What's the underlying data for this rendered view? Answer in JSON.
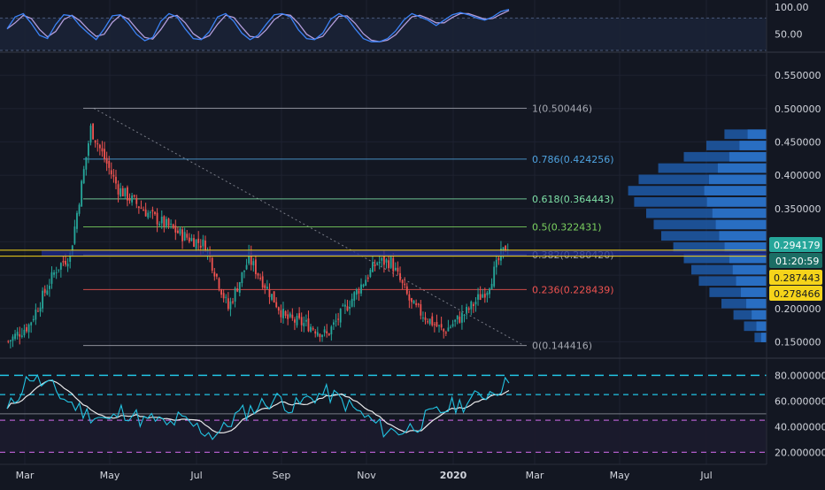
{
  "colors": {
    "background": "#131722",
    "grid": "#1e2230",
    "divider": "#363a45",
    "axis_text": "#d1d4dc",
    "up": "#26a69a",
    "down": "#ef5350",
    "stoch_k": "#3b82f6",
    "stoch_d": "#b39ddb",
    "rsi": "#22c4e3",
    "rsi_ma": "#ffffff",
    "volume_profile": "#1f5ba8",
    "volume_profile_light": "#2f7bd6",
    "last_price_bg": "#26a69a",
    "yellow_level_bg": "#f5d41a"
  },
  "top_panel": {
    "ticks": [
      "100.00",
      "50.00"
    ],
    "tick_values": [
      100,
      50
    ],
    "range": [
      20,
      110
    ],
    "band": [
      20,
      80
    ]
  },
  "rsi_panel": {
    "ticks": [
      "80.000000",
      "60.000000",
      "40.000000",
      "20.000000"
    ],
    "tick_values": [
      80,
      60,
      40,
      20
    ],
    "range": [
      12,
      92
    ],
    "levels": {
      "upper": 80,
      "upper2": 65,
      "lower": 45,
      "bottom": 20,
      "mid": 50
    }
  },
  "main_panel": {
    "ticks": [
      "0.550000",
      "0.500000",
      "0.450000",
      "0.400000",
      "0.350000",
      "0.300000",
      "0.250000",
      "0.200000",
      "0.150000"
    ],
    "tick_values": [
      0.55,
      0.5,
      0.45,
      0.4,
      0.35,
      0.3,
      0.25,
      0.2,
      0.15
    ],
    "range": [
      0.128,
      0.582
    ]
  },
  "x_axis": {
    "labels": [
      "Mar",
      "May",
      "Jul",
      "Sep",
      "Nov",
      "2020",
      "Mar",
      "May",
      "Jul"
    ],
    "bold": [
      false,
      false,
      false,
      false,
      false,
      true,
      false,
      false,
      false
    ]
  },
  "price_labels": {
    "last": "0.294179",
    "countdown": "01:20:59",
    "level_a": "0.287443",
    "level_b": "0.278466"
  },
  "fib_levels": [
    {
      "text": "1(0.500446)",
      "value": 0.500446,
      "color": "#a3a6af"
    },
    {
      "text": "0.786(0.424256)",
      "value": 0.424256,
      "color": "#4fa3e0"
    },
    {
      "text": "0.618(0.364443)",
      "value": 0.364443,
      "color": "#7ee0a6"
    },
    {
      "text": "0.5(0.322431)",
      "value": 0.322431,
      "color": "#7bd15f"
    },
    {
      "text": "0.382(0.280420)",
      "value": 0.28042,
      "color": "#a3a6af"
    },
    {
      "text": "0.236(0.228439)",
      "value": 0.228439,
      "color": "#ef5350"
    },
    {
      "text": "0(0.144416)",
      "value": 0.144416,
      "color": "#a3a6af"
    }
  ],
  "chart_data": {
    "type": "candlestick",
    "note_free": "",
    "candles": {
      "segments": [
        {
          "from": 0.148,
          "to": 0.175,
          "n": 10
        },
        {
          "from": 0.175,
          "to": 0.26,
          "n": 12
        },
        {
          "from": 0.26,
          "to": 0.28,
          "n": 6
        },
        {
          "from": 0.28,
          "to": 0.47,
          "n": 9
        },
        {
          "from": 0.47,
          "to": 0.38,
          "n": 12
        },
        {
          "from": 0.38,
          "to": 0.34,
          "n": 14
        },
        {
          "from": 0.34,
          "to": 0.31,
          "n": 14
        },
        {
          "from": 0.31,
          "to": 0.295,
          "n": 10
        },
        {
          "from": 0.295,
          "to": 0.2,
          "n": 10
        },
        {
          "from": 0.2,
          "to": 0.275,
          "n": 9
        },
        {
          "from": 0.275,
          "to": 0.185,
          "n": 16
        },
        {
          "from": 0.185,
          "to": 0.175,
          "n": 10
        },
        {
          "from": 0.175,
          "to": 0.16,
          "n": 8
        },
        {
          "from": 0.16,
          "to": 0.22,
          "n": 12
        },
        {
          "from": 0.22,
          "to": 0.27,
          "n": 10
        },
        {
          "from": 0.27,
          "to": 0.27,
          "n": 6
        },
        {
          "from": 0.27,
          "to": 0.205,
          "n": 9
        },
        {
          "from": 0.205,
          "to": 0.165,
          "n": 14
        },
        {
          "from": 0.165,
          "to": 0.195,
          "n": 10
        },
        {
          "from": 0.195,
          "to": 0.23,
          "n": 9
        },
        {
          "from": 0.23,
          "to": 0.28,
          "n": 6
        },
        {
          "from": 0.28,
          "to": 0.295,
          "n": 3
        }
      ]
    },
    "stoch_rsi": [
      60,
      82,
      88,
      70,
      48,
      42,
      68,
      86,
      84,
      66,
      52,
      40,
      60,
      84,
      86,
      70,
      50,
      38,
      44,
      74,
      88,
      82,
      60,
      42,
      40,
      55,
      82,
      88,
      74,
      52,
      40,
      48,
      68,
      86,
      88,
      82,
      58,
      42,
      40,
      52,
      78,
      88,
      80,
      60,
      42,
      36,
      36,
      42,
      56,
      76,
      88,
      82,
      76,
      66,
      76,
      86,
      90,
      86,
      80,
      76,
      82,
      92,
      96
    ],
    "rsi": [
      52,
      66,
      80,
      74,
      70,
      62,
      56,
      50,
      48,
      44,
      52,
      50,
      44,
      46,
      40,
      46,
      42,
      38,
      34,
      38,
      48,
      52,
      56,
      60,
      62,
      54,
      60,
      64,
      66,
      62,
      56,
      50,
      44,
      38,
      36,
      38,
      42,
      48,
      52,
      56,
      58,
      62,
      66,
      70,
      74
    ],
    "volume_profile": [
      0.28,
      0.4,
      0.55,
      0.72,
      0.85,
      0.92,
      0.88,
      0.8,
      0.75,
      0.7,
      0.62,
      0.55,
      0.5,
      0.45,
      0.38,
      0.3,
      0.22,
      0.15,
      0.08
    ]
  }
}
